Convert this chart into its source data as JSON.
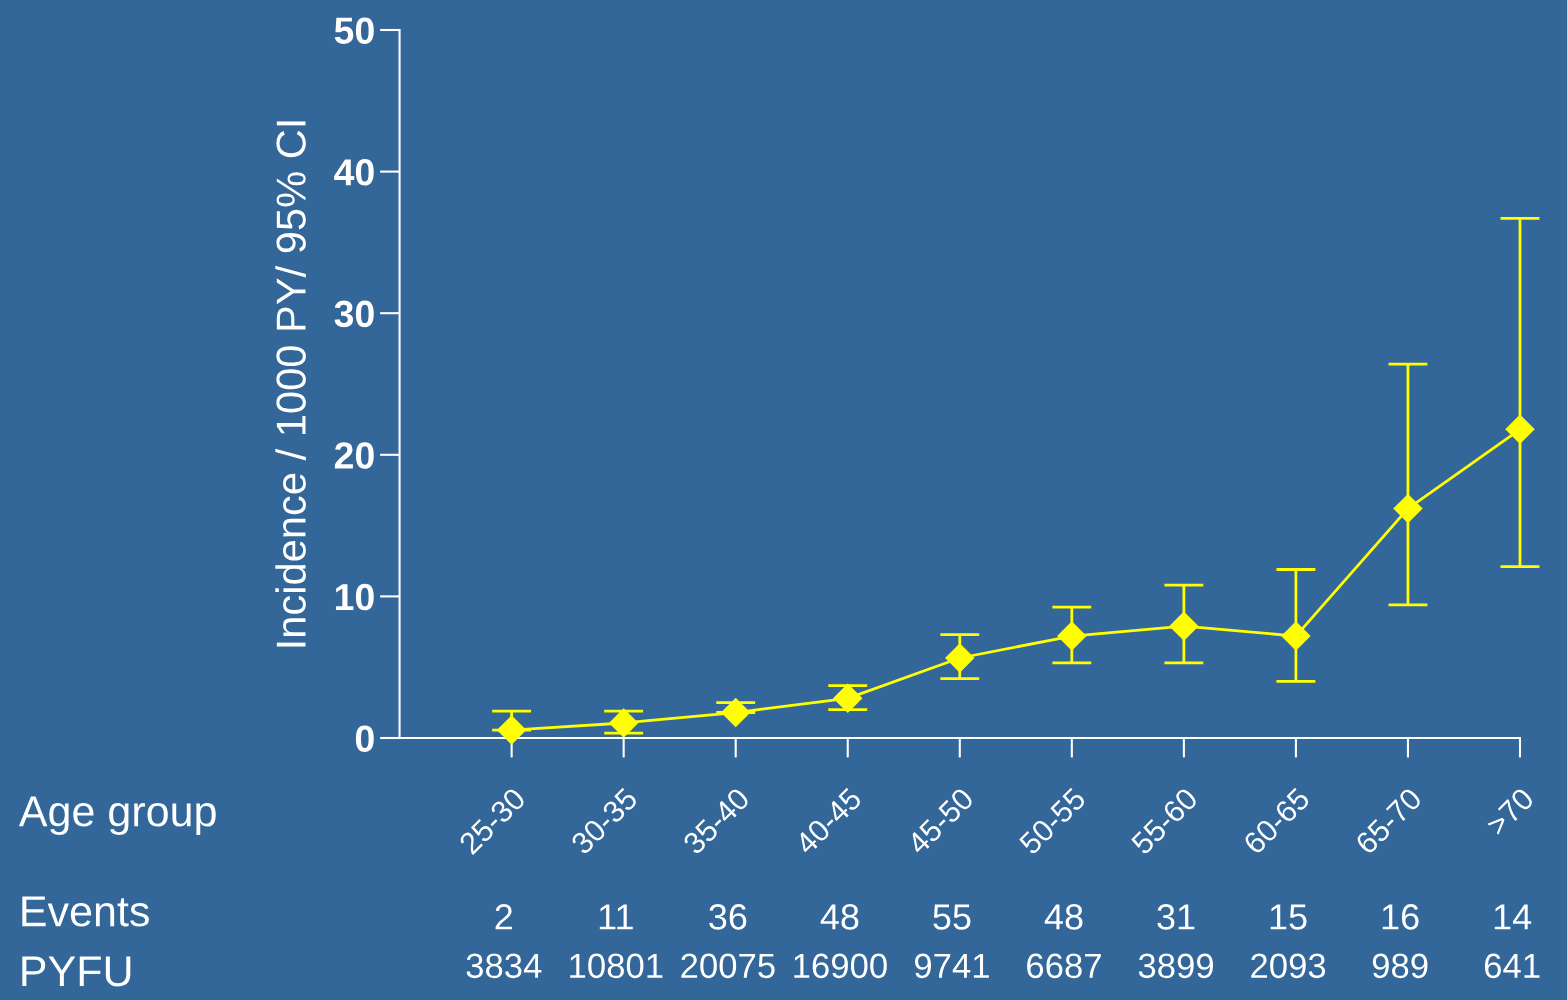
{
  "chart_data": {
    "type": "line",
    "ylabel": "Incidence / 1000 PY/ 95% CI",
    "categories": [
      "25-30",
      "30-35",
      "35-40",
      "40-45",
      "45-50",
      "50-55",
      "55-60",
      "60-65",
      "65-70",
      ">70"
    ],
    "series": [
      {
        "color": "#ffff00",
        "values": [
          0.56,
          1.06,
          1.8,
          2.8,
          5.65,
          7.2,
          7.9,
          7.2,
          16.2,
          21.8
        ],
        "errors": [
          [
            0.56,
            1.9
          ],
          [
            0.35,
            1.9
          ],
          [
            1.8,
            2.5
          ],
          [
            2.0,
            3.7
          ],
          [
            4.2,
            7.3
          ],
          [
            5.3,
            9.25
          ],
          [
            5.3,
            10.8
          ],
          [
            4.0,
            11.9
          ],
          [
            9.4,
            26.4
          ],
          [
            12.1,
            36.7
          ]
        ]
      }
    ],
    "ylim": [
      0,
      50
    ],
    "yticks": [
      0,
      10,
      20,
      30,
      40,
      50
    ],
    "grid": false,
    "marker": "diamond",
    "line_style": "solid",
    "annotations": [
      "Age group",
      "Events",
      "2",
      "11",
      "36",
      "48",
      "55",
      "48",
      "31",
      "15",
      "16",
      "14",
      "PYFU",
      "3834",
      "10801",
      "20075",
      "16900",
      "9741",
      "6687",
      "3899",
      "2093",
      "989",
      "641"
    ]
  }
}
